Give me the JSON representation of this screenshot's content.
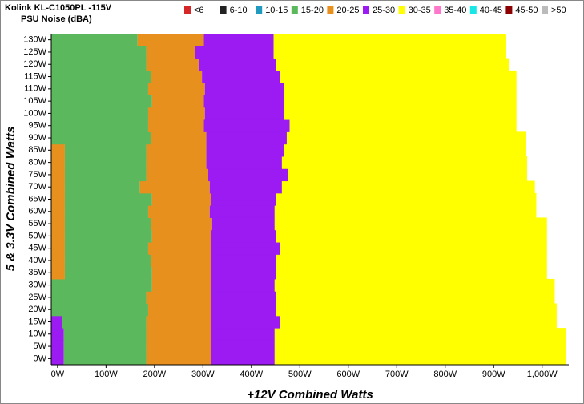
{
  "chart_data": {
    "type": "heatmap",
    "title": "Kolink KL-C1050PL -115V",
    "subtitle": "PSU Noise (dBA)",
    "x_label": "+12V Combined Watts",
    "y_label": "5 & 3.3V Combined Watts",
    "legend": [
      {
        "name": "<6",
        "color": "#d62728"
      },
      {
        "name": "6-10",
        "color": "#222222"
      },
      {
        "name": "10-15",
        "color": "#1f9bbf"
      },
      {
        "name": "15-20",
        "color": "#5cb85c"
      },
      {
        "name": "20-25",
        "color": "#e8901e"
      },
      {
        "name": "25-30",
        "color": "#9b1bf2"
      },
      {
        "name": "30-35",
        "color": "#ffff00"
      },
      {
        "name": "35-40",
        "color": "#ff77cc"
      },
      {
        "name": "40-45",
        "color": "#19e6e6"
      },
      {
        "name": "45-50",
        "color": "#8b0000"
      },
      {
        "name": ">50",
        "color": "#bbbbbb"
      }
    ],
    "xlim": [
      -13,
      1055
    ],
    "ylim": [
      -2.5,
      132.5
    ],
    "xticks": [
      {
        "value": 0,
        "label": "0W"
      },
      {
        "value": 100,
        "label": "100W"
      },
      {
        "value": 200,
        "label": "200W"
      },
      {
        "value": 300,
        "label": "300W"
      },
      {
        "value": 400,
        "label": "400W"
      },
      {
        "value": 500,
        "label": "500W"
      },
      {
        "value": 600,
        "label": "600W"
      },
      {
        "value": 700,
        "label": "700W"
      },
      {
        "value": 800,
        "label": "800W"
      },
      {
        "value": 900,
        "label": "900W"
      },
      {
        "value": 1000,
        "label": "1,000W"
      }
    ],
    "yticks": [
      {
        "value": 0,
        "label": "0W"
      },
      {
        "value": 5,
        "label": "5W"
      },
      {
        "value": 10,
        "label": "10W"
      },
      {
        "value": 15,
        "label": "15W"
      },
      {
        "value": 20,
        "label": "20W"
      },
      {
        "value": 25,
        "label": "25W"
      },
      {
        "value": 30,
        "label": "30W"
      },
      {
        "value": 35,
        "label": "35W"
      },
      {
        "value": 40,
        "label": "40W"
      },
      {
        "value": 45,
        "label": "45W"
      },
      {
        "value": 50,
        "label": "50W"
      },
      {
        "value": 55,
        "label": "55W"
      },
      {
        "value": 60,
        "label": "60W"
      },
      {
        "value": 65,
        "label": "65W"
      },
      {
        "value": 70,
        "label": "70W"
      },
      {
        "value": 75,
        "label": "75W"
      },
      {
        "value": 80,
        "label": "80W"
      },
      {
        "value": 85,
        "label": "85W"
      },
      {
        "value": 90,
        "label": "90W"
      },
      {
        "value": 95,
        "label": "95W"
      },
      {
        "value": 100,
        "label": "100W"
      },
      {
        "value": 105,
        "label": "105W"
      },
      {
        "value": 110,
        "label": "110W"
      },
      {
        "value": 115,
        "label": "115W"
      },
      {
        "value": 120,
        "label": "120W"
      },
      {
        "value": 125,
        "label": "125W"
      },
      {
        "value": 130,
        "label": "130W"
      }
    ],
    "row_height": 5,
    "rows": [
      {
        "y": 0,
        "segments": [
          [
            -13,
            13,
            5
          ],
          [
            13,
            183,
            3
          ],
          [
            183,
            316,
            4
          ],
          [
            316,
            448,
            5
          ],
          [
            448,
            1050,
            6
          ]
        ]
      },
      {
        "y": 5,
        "segments": [
          [
            -13,
            13,
            5
          ],
          [
            13,
            183,
            3
          ],
          [
            183,
            316,
            4
          ],
          [
            316,
            448,
            5
          ],
          [
            448,
            1050,
            6
          ]
        ]
      },
      {
        "y": 10,
        "segments": [
          [
            -13,
            13,
            5
          ],
          [
            13,
            183,
            3
          ],
          [
            183,
            316,
            4
          ],
          [
            316,
            448,
            5
          ],
          [
            448,
            1050,
            6
          ]
        ]
      },
      {
        "y": 15,
        "segments": [
          [
            -13,
            10,
            5
          ],
          [
            10,
            183,
            3
          ],
          [
            183,
            316,
            4
          ],
          [
            316,
            460,
            5
          ],
          [
            460,
            1030,
            6
          ]
        ]
      },
      {
        "y": 20,
        "segments": [
          [
            -13,
            187,
            3
          ],
          [
            187,
            316,
            4
          ],
          [
            316,
            451,
            5
          ],
          [
            451,
            1030,
            6
          ]
        ]
      },
      {
        "y": 25,
        "segments": [
          [
            -13,
            183,
            3
          ],
          [
            183,
            316,
            4
          ],
          [
            316,
            451,
            5
          ],
          [
            451,
            1026,
            6
          ]
        ]
      },
      {
        "y": 30,
        "segments": [
          [
            -13,
            195,
            3
          ],
          [
            195,
            316,
            4
          ],
          [
            316,
            448,
            5
          ],
          [
            448,
            1026,
            6
          ]
        ]
      },
      {
        "y": 35,
        "segments": [
          [
            -13,
            15,
            4
          ],
          [
            15,
            195,
            3
          ],
          [
            195,
            316,
            4
          ],
          [
            316,
            451,
            5
          ],
          [
            451,
            1010,
            6
          ]
        ]
      },
      {
        "y": 40,
        "segments": [
          [
            -13,
            15,
            4
          ],
          [
            15,
            192,
            3
          ],
          [
            192,
            316,
            4
          ],
          [
            316,
            451,
            5
          ],
          [
            451,
            1010,
            6
          ]
        ]
      },
      {
        "y": 45,
        "segments": [
          [
            -13,
            15,
            4
          ],
          [
            15,
            187,
            3
          ],
          [
            187,
            316,
            4
          ],
          [
            316,
            460,
            5
          ],
          [
            460,
            1010,
            6
          ]
        ]
      },
      {
        "y": 50,
        "segments": [
          [
            -13,
            15,
            4
          ],
          [
            15,
            195,
            3
          ],
          [
            195,
            316,
            4
          ],
          [
            316,
            451,
            5
          ],
          [
            451,
            1010,
            6
          ]
        ]
      },
      {
        "y": 55,
        "segments": [
          [
            -13,
            15,
            4
          ],
          [
            15,
            192,
            3
          ],
          [
            192,
            319,
            4
          ],
          [
            319,
            448,
            5
          ],
          [
            448,
            1010,
            6
          ]
        ]
      },
      {
        "y": 60,
        "segments": [
          [
            -13,
            15,
            4
          ],
          [
            15,
            187,
            3
          ],
          [
            187,
            314,
            4
          ],
          [
            314,
            448,
            5
          ],
          [
            448,
            988,
            6
          ]
        ]
      },
      {
        "y": 65,
        "segments": [
          [
            -13,
            15,
            4
          ],
          [
            15,
            195,
            3
          ],
          [
            195,
            316,
            4
          ],
          [
            316,
            451,
            5
          ],
          [
            451,
            988,
            6
          ]
        ]
      },
      {
        "y": 70,
        "segments": [
          [
            -13,
            15,
            4
          ],
          [
            15,
            170,
            3
          ],
          [
            170,
            314,
            4
          ],
          [
            314,
            463,
            5
          ],
          [
            463,
            985,
            6
          ]
        ]
      },
      {
        "y": 75,
        "segments": [
          [
            -13,
            15,
            4
          ],
          [
            15,
            183,
            3
          ],
          [
            183,
            311,
            4
          ],
          [
            311,
            476,
            5
          ],
          [
            476,
            969,
            6
          ]
        ]
      },
      {
        "y": 80,
        "segments": [
          [
            -13,
            15,
            4
          ],
          [
            15,
            183,
            3
          ],
          [
            183,
            307,
            4
          ],
          [
            307,
            463,
            5
          ],
          [
            463,
            969,
            6
          ]
        ]
      },
      {
        "y": 85,
        "segments": [
          [
            -13,
            15,
            4
          ],
          [
            15,
            183,
            3
          ],
          [
            183,
            307,
            4
          ],
          [
            307,
            468,
            5
          ],
          [
            468,
            967,
            6
          ]
        ]
      },
      {
        "y": 90,
        "segments": [
          [
            -13,
            192,
            3
          ],
          [
            192,
            307,
            4
          ],
          [
            307,
            473,
            5
          ],
          [
            473,
            967,
            6
          ]
        ]
      },
      {
        "y": 95,
        "segments": [
          [
            -13,
            187,
            3
          ],
          [
            187,
            302,
            4
          ],
          [
            302,
            479,
            5
          ],
          [
            479,
            947,
            6
          ]
        ]
      },
      {
        "y": 100,
        "segments": [
          [
            -13,
            187,
            3
          ],
          [
            187,
            304,
            4
          ],
          [
            304,
            468,
            5
          ],
          [
            468,
            947,
            6
          ]
        ]
      },
      {
        "y": 105,
        "segments": [
          [
            -13,
            195,
            3
          ],
          [
            195,
            302,
            4
          ],
          [
            302,
            468,
            5
          ],
          [
            468,
            947,
            6
          ]
        ]
      },
      {
        "y": 110,
        "segments": [
          [
            -13,
            187,
            3
          ],
          [
            187,
            304,
            4
          ],
          [
            304,
            468,
            5
          ],
          [
            468,
            947,
            6
          ]
        ]
      },
      {
        "y": 115,
        "segments": [
          [
            -13,
            192,
            3
          ],
          [
            192,
            298,
            4
          ],
          [
            298,
            460,
            5
          ],
          [
            460,
            947,
            6
          ]
        ]
      },
      {
        "y": 120,
        "segments": [
          [
            -13,
            183,
            3
          ],
          [
            183,
            291,
            4
          ],
          [
            291,
            451,
            5
          ],
          [
            451,
            931,
            6
          ]
        ]
      },
      {
        "y": 125,
        "segments": [
          [
            -13,
            183,
            3
          ],
          [
            183,
            283,
            4
          ],
          [
            283,
            446,
            5
          ],
          [
            446,
            926,
            6
          ]
        ]
      },
      {
        "y": 130,
        "segments": [
          [
            -13,
            165,
            3
          ],
          [
            165,
            302,
            4
          ],
          [
            302,
            446,
            5
          ],
          [
            446,
            926,
            6
          ]
        ]
      }
    ]
  }
}
